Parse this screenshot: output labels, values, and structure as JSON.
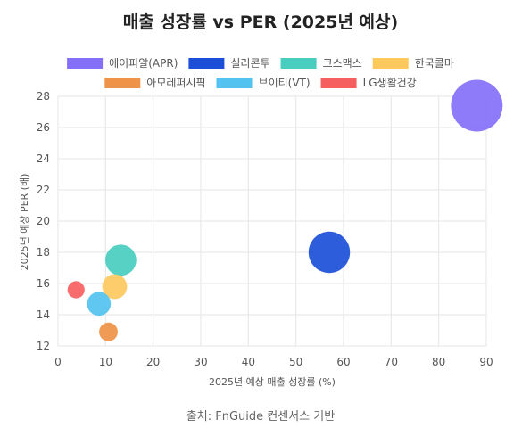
{
  "chart_data": {
    "type": "bubble",
    "title": "매출 성장률 vs PER (2025년 예상)",
    "xlabel": "2025년 예상 매출 성장률 (%)",
    "ylabel": "2025년 예상 PER (배)",
    "xlim": [
      0,
      90
    ],
    "ylim": [
      12,
      28
    ],
    "x_ticks": [
      0,
      10,
      20,
      30,
      40,
      50,
      60,
      70,
      80,
      90
    ],
    "y_ticks": [
      12,
      14,
      16,
      18,
      20,
      22,
      24,
      26,
      28
    ],
    "grid": true,
    "legend_position": "top",
    "series": [
      {
        "name": "에이피알(APR)",
        "color": "#8470f8",
        "x": 88,
        "y": 27.4,
        "size": 1.0
      },
      {
        "name": "실리콘투",
        "color": "#1b4fd8",
        "x": 57,
        "y": 18.0,
        "size": 0.8
      },
      {
        "name": "코스맥스",
        "color": "#48cdbf",
        "x": 13.2,
        "y": 17.5,
        "size": 0.6
      },
      {
        "name": "한국콜마",
        "color": "#fdc95f",
        "x": 11.9,
        "y": 15.8,
        "size": 0.48
      },
      {
        "name": "아모레퍼시픽",
        "color": "#ee9348",
        "x": 10.6,
        "y": 12.9,
        "size": 0.36
      },
      {
        "name": "브이티(VT)",
        "color": "#52c2f0",
        "x": 8.6,
        "y": 14.7,
        "size": 0.46
      },
      {
        "name": "LG생활건강",
        "color": "#f65f5f",
        "x": 3.8,
        "y": 15.6,
        "size": 0.33
      }
    ],
    "source": "출처: FnGuide 컨센서스 기반"
  }
}
